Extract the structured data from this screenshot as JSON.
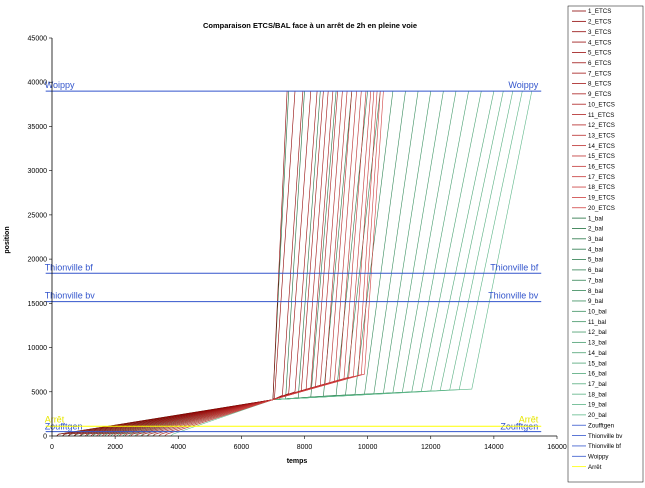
{
  "chart_data": {
    "type": "line",
    "title": "Comparaison ETCS/BAL face à un arrêt de 2h en pleine voie",
    "xlabel": "temps",
    "ylabel": "position",
    "xlim": [
      0,
      16000
    ],
    "ylim": [
      0,
      45000
    ],
    "xticks": [
      "0",
      "2000",
      "4000",
      "6000",
      "8000",
      "10000",
      "12000",
      "14000",
      "16000"
    ],
    "yticks": [
      "0",
      "5000",
      "10000",
      "15000",
      "20000",
      "25000",
      "30000",
      "35000",
      "40000",
      "45000"
    ],
    "grid": false,
    "legend_position": "right",
    "stop_position": 4100,
    "etcs": {
      "count": 20,
      "start_x": [
        150,
        330,
        510,
        690,
        870,
        1050,
        1230,
        1410,
        1590,
        1770,
        1950,
        2130,
        2310,
        2490,
        2670,
        2850,
        3030,
        3210,
        3390,
        3570
      ],
      "resume_x": [
        7000,
        7050,
        7300,
        7500,
        7700,
        7900,
        8050,
        8200,
        8350,
        8500,
        8650,
        8800,
        8950,
        9100,
        9250,
        9400,
        9550,
        9700,
        9800,
        9900
      ],
      "resume_y": [
        4100,
        4300,
        4600,
        4800,
        5000,
        5150,
        5300,
        5450,
        5600,
        5750,
        5900,
        6050,
        6200,
        6350,
        6500,
        6650,
        6750,
        6850,
        6950,
        7000
      ],
      "end_x": [
        7450,
        7700,
        7950,
        8200,
        8400,
        8600,
        8750,
        8900,
        9050,
        9200,
        9350,
        9500,
        9650,
        9800,
        9950,
        10100,
        10200,
        10300,
        10400,
        10500
      ],
      "end_y": 39000
    },
    "bal": {
      "count": 20,
      "start_x": [
        150,
        340,
        530,
        720,
        910,
        1100,
        1290,
        1480,
        1670,
        1860,
        2050,
        2240,
        2430,
        2620,
        2810,
        3000,
        3190,
        3380,
        3570,
        3760
      ],
      "resume_x": [
        7000,
        7400,
        7800,
        8200,
        8600,
        9000,
        9300,
        9600,
        9900,
        10200,
        10500,
        10800,
        11100,
        11400,
        11700,
        12000,
        12300,
        12600,
        12900,
        13300
      ],
      "resume_y": [
        4100,
        4200,
        4300,
        4400,
        4500,
        4600,
        4650,
        4700,
        4750,
        4800,
        4850,
        4900,
        4950,
        5000,
        5050,
        5100,
        5150,
        5200,
        5250,
        5300
      ],
      "end_x": [
        7500,
        8000,
        8500,
        9000,
        9500,
        10000,
        10400,
        10800,
        11200,
        11600,
        12000,
        12400,
        12800,
        13200,
        13600,
        14000,
        14300,
        14600,
        14900,
        15200
      ],
      "end_y": 39000
    },
    "references": [
      {
        "name": "Zoufftgen",
        "y": 500,
        "x0": -200,
        "x1": 15500,
        "color": "#3355cc"
      },
      {
        "name": "Arrêt",
        "y": 1100,
        "x0": -200,
        "x1": 15500,
        "color": "#ffff00"
      },
      {
        "name": "Thionville bv",
        "y": 15200,
        "x0": -200,
        "x1": 15500,
        "color": "#3355cc"
      },
      {
        "name": "Thionville bf",
        "y": 18400,
        "x0": -200,
        "x1": 15500,
        "color": "#3355cc"
      },
      {
        "name": "Woippy",
        "y": 39000,
        "x0": -200,
        "x1": 15500,
        "color": "#3355cc"
      }
    ],
    "legend": [
      "1_ETCS",
      "2_ETCS",
      "3_ETCS",
      "4_ETCS",
      "5_ETCS",
      "6_ETCS",
      "7_ETCS",
      "8_ETCS",
      "9_ETCS",
      "10_ETCS",
      "11_ETCS",
      "12_ETCS",
      "13_ETCS",
      "14_ETCS",
      "15_ETCS",
      "16_ETCS",
      "17_ETCS",
      "18_ETCS",
      "19_ETCS",
      "20_ETCS",
      "1_bal",
      "2_bal",
      "3_bal",
      "4_bal",
      "5_bal",
      "6_bal",
      "7_bal",
      "8_bal",
      "9_bal",
      "10_bal",
      "11_bal",
      "12_bal",
      "13_bal",
      "14_bal",
      "15_bal",
      "16_bal",
      "17_bal",
      "18_bal",
      "19_bal",
      "20_bal",
      "Zoufftgen",
      "Thionville bv",
      "Thionville bf",
      "Woippy",
      "Arrêt"
    ],
    "colors": {
      "etcs": [
        "#8b0000",
        "#d04040"
      ],
      "bal": [
        "#1a6b3a",
        "#5fb88a"
      ],
      "ref_blue": "#3355cc",
      "ref_yellow": "#ffff00"
    }
  }
}
